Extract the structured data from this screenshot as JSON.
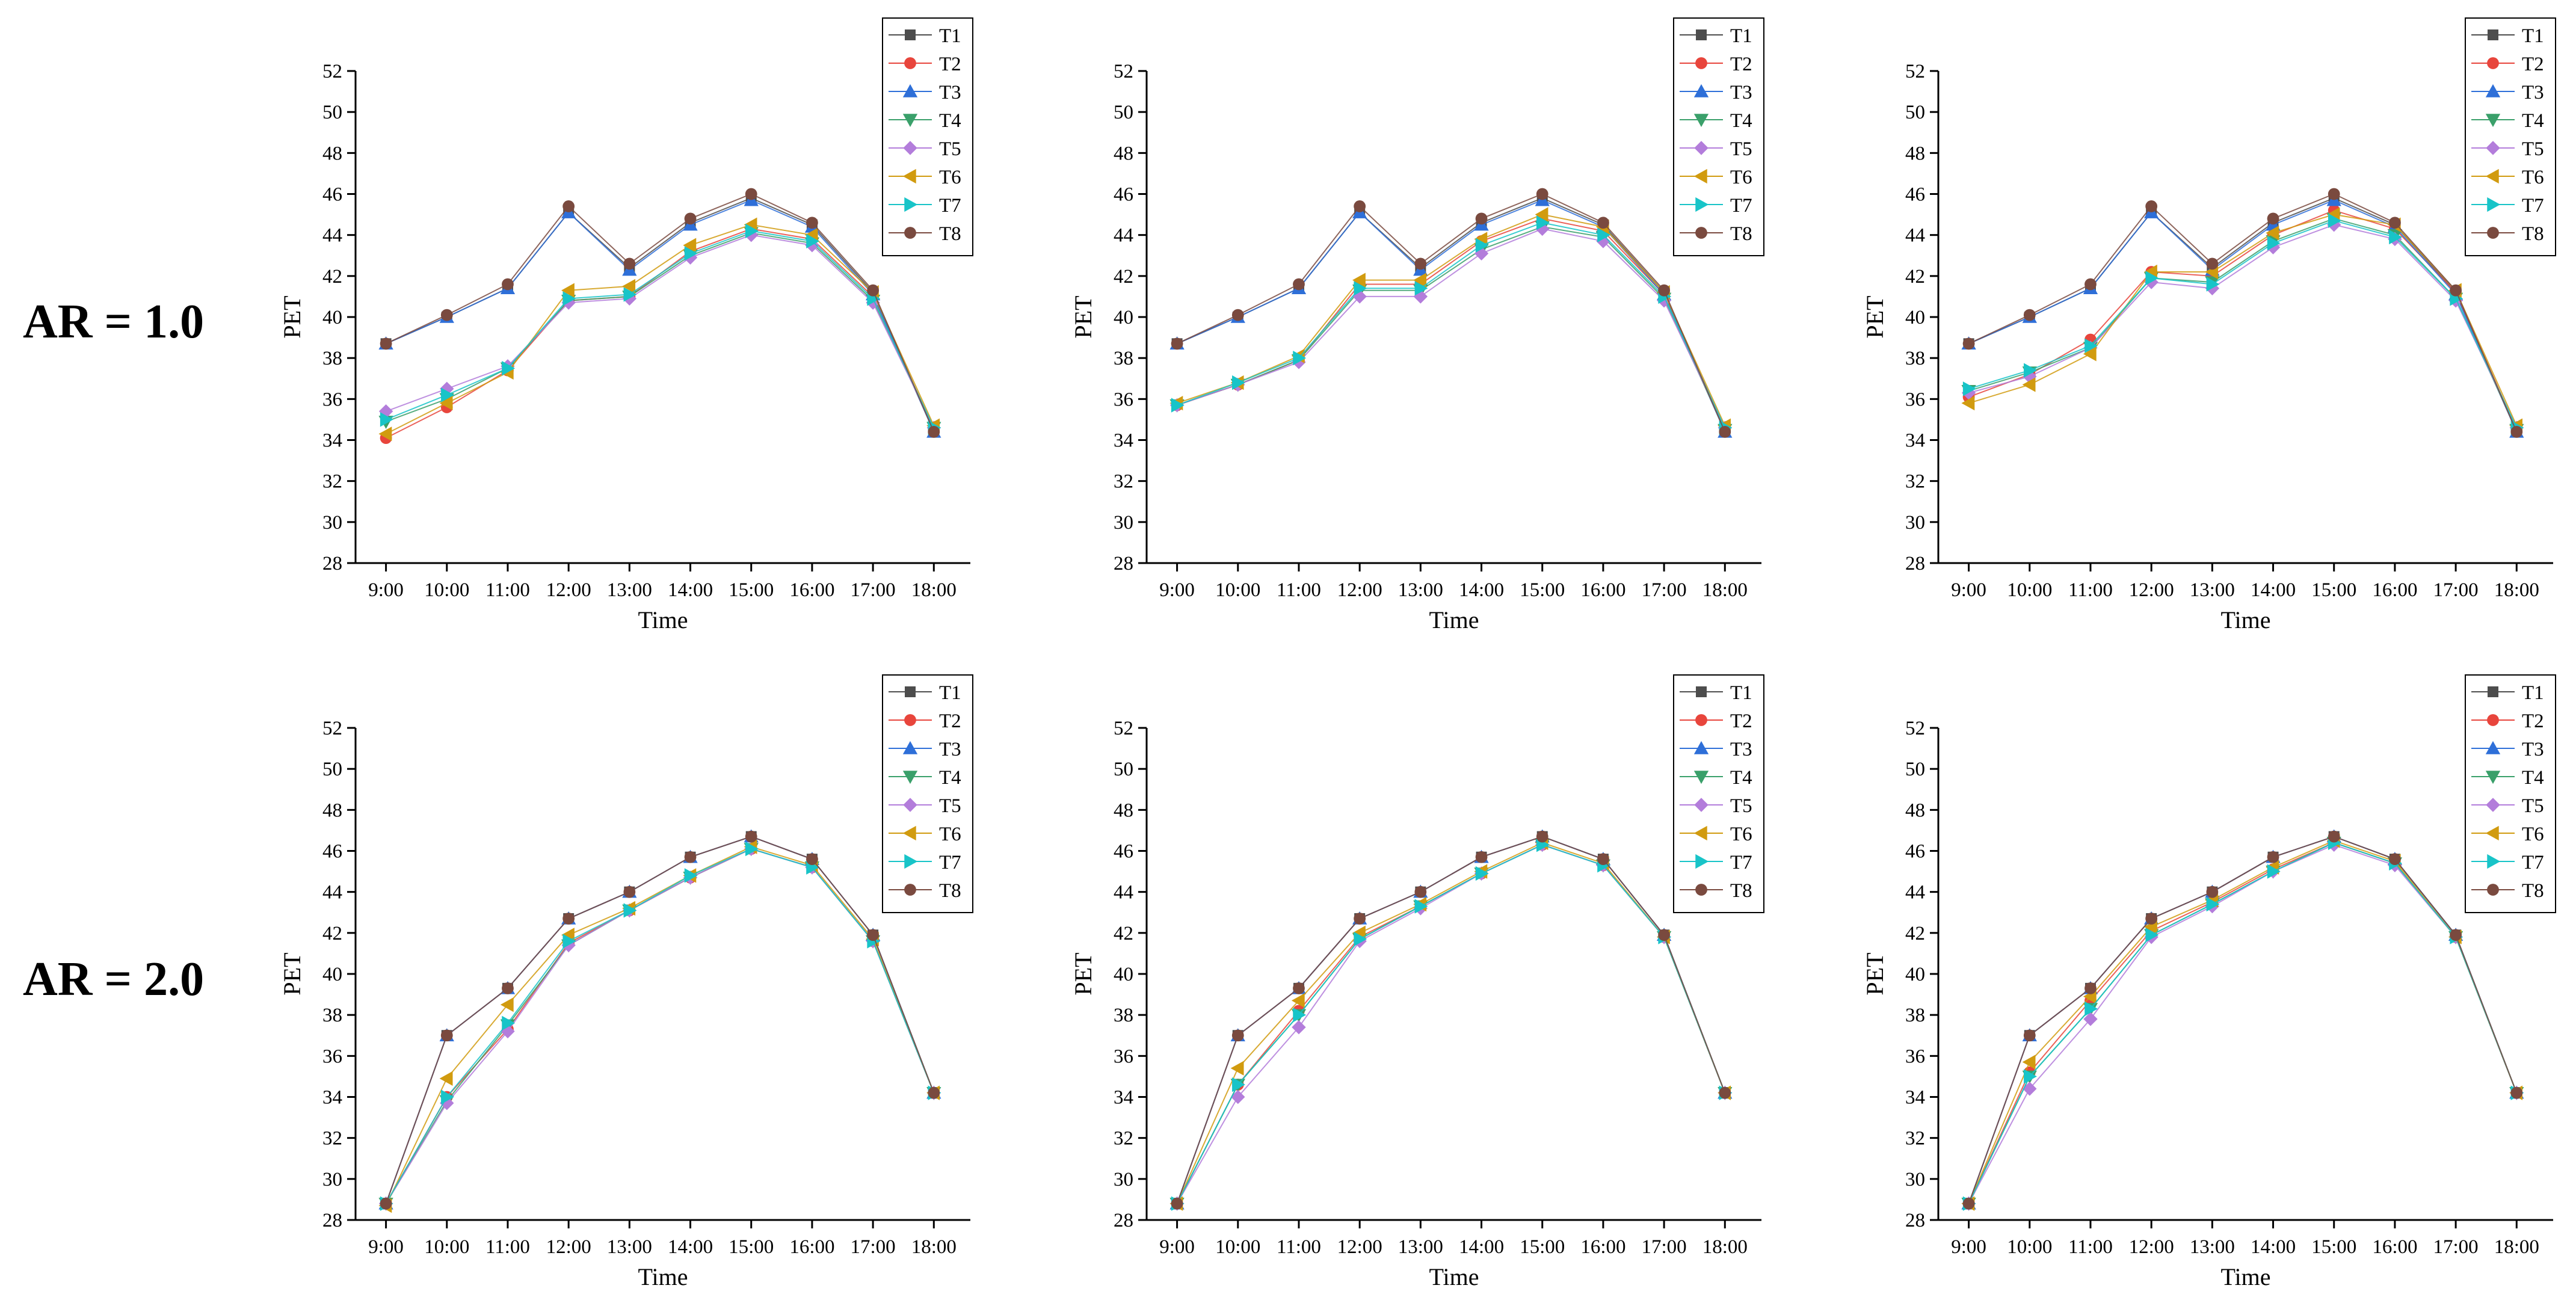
{
  "row_labels": [
    "AR = 1.0",
    "AR = 2.0"
  ],
  "series_names": [
    "T1",
    "T2",
    "T3",
    "T4",
    "T5",
    "T6",
    "T7",
    "T8"
  ],
  "series_colors": [
    "#4d4d4d",
    "#e8453c",
    "#2e6fd8",
    "#3aa06a",
    "#b37ddb",
    "#d19b0f",
    "#18c4c8",
    "#7a4a3f"
  ],
  "series_markers": [
    "square",
    "circle",
    "triangle-up",
    "triangle-down",
    "diamond",
    "triangle-left",
    "triangle-right",
    "circle"
  ],
  "chart_data": [
    {
      "type": "line",
      "title": "",
      "xlabel": "Time",
      "ylabel": "PET",
      "ylim": [
        28,
        52
      ],
      "yticks": [
        28,
        30,
        32,
        34,
        36,
        38,
        40,
        42,
        44,
        46,
        48,
        50,
        52
      ],
      "categories": [
        "9:00",
        "10:00",
        "11:00",
        "12:00",
        "13:00",
        "14:00",
        "15:00",
        "16:00",
        "17:00",
        "18:00"
      ],
      "legend_position": "top-right",
      "series": [
        {
          "name": "T1",
          "values": [
            38.7,
            40.0,
            41.4,
            45.1,
            42.4,
            44.6,
            45.8,
            44.5,
            41.2,
            34.4
          ]
        },
        {
          "name": "T2",
          "values": [
            34.1,
            35.6,
            37.4,
            40.8,
            41.0,
            43.2,
            44.3,
            43.8,
            41.0,
            34.5
          ]
        },
        {
          "name": "T3",
          "values": [
            38.7,
            40.0,
            41.4,
            45.1,
            42.3,
            44.5,
            45.7,
            44.4,
            41.1,
            34.4
          ]
        },
        {
          "name": "T4",
          "values": [
            34.9,
            36.0,
            37.5,
            40.8,
            41.0,
            43.0,
            44.1,
            43.6,
            40.8,
            34.6
          ]
        },
        {
          "name": "T5",
          "values": [
            35.4,
            36.5,
            37.6,
            40.7,
            40.9,
            42.9,
            44.0,
            43.5,
            40.7,
            34.6
          ]
        },
        {
          "name": "T6",
          "values": [
            34.3,
            35.8,
            37.3,
            41.3,
            41.5,
            43.5,
            44.5,
            44.0,
            41.2,
            34.7
          ]
        },
        {
          "name": "T7",
          "values": [
            35.0,
            36.2,
            37.5,
            40.9,
            41.1,
            43.1,
            44.2,
            43.7,
            40.9,
            34.6
          ]
        },
        {
          "name": "T8",
          "values": [
            38.7,
            40.1,
            41.6,
            45.4,
            42.6,
            44.8,
            46.0,
            44.6,
            41.3,
            34.4
          ]
        }
      ]
    },
    {
      "type": "line",
      "title": "",
      "xlabel": "Time",
      "ylabel": "PET",
      "ylim": [
        28,
        52
      ],
      "yticks": [
        28,
        30,
        32,
        34,
        36,
        38,
        40,
        42,
        44,
        46,
        48,
        50,
        52
      ],
      "categories": [
        "9:00",
        "10:00",
        "11:00",
        "12:00",
        "13:00",
        "14:00",
        "15:00",
        "16:00",
        "17:00",
        "18:00"
      ],
      "legend_position": "top-right",
      "series": [
        {
          "name": "T1",
          "values": [
            38.7,
            40.0,
            41.4,
            45.1,
            42.4,
            44.6,
            45.8,
            44.5,
            41.2,
            34.4
          ]
        },
        {
          "name": "T2",
          "values": [
            35.7,
            36.7,
            37.9,
            41.6,
            41.6,
            43.7,
            44.8,
            44.2,
            41.1,
            34.5
          ]
        },
        {
          "name": "T3",
          "values": [
            38.7,
            40.0,
            41.4,
            45.1,
            42.3,
            44.5,
            45.7,
            44.4,
            41.1,
            34.4
          ]
        },
        {
          "name": "T4",
          "values": [
            35.7,
            36.7,
            37.9,
            41.3,
            41.3,
            43.3,
            44.4,
            43.9,
            40.9,
            34.5
          ]
        },
        {
          "name": "T5",
          "values": [
            35.7,
            36.7,
            37.8,
            41.0,
            41.0,
            43.1,
            44.3,
            43.7,
            40.8,
            34.6
          ]
        },
        {
          "name": "T6",
          "values": [
            35.8,
            36.8,
            38.1,
            41.8,
            41.8,
            43.8,
            45.0,
            44.4,
            41.2,
            34.7
          ]
        },
        {
          "name": "T7",
          "values": [
            35.7,
            36.8,
            38.0,
            41.4,
            41.4,
            43.5,
            44.6,
            44.0,
            41.0,
            34.6
          ]
        },
        {
          "name": "T8",
          "values": [
            38.7,
            40.1,
            41.6,
            45.4,
            42.6,
            44.8,
            46.0,
            44.6,
            41.3,
            34.4
          ]
        }
      ]
    },
    {
      "type": "line",
      "title": "",
      "xlabel": "Time",
      "ylabel": "PET",
      "ylim": [
        28,
        52
      ],
      "yticks": [
        28,
        30,
        32,
        34,
        36,
        38,
        40,
        42,
        44,
        46,
        48,
        50,
        52
      ],
      "categories": [
        "9:00",
        "10:00",
        "11:00",
        "12:00",
        "13:00",
        "14:00",
        "15:00",
        "16:00",
        "17:00",
        "18:00"
      ],
      "legend_position": "top-right",
      "series": [
        {
          "name": "T1",
          "values": [
            38.7,
            40.0,
            41.4,
            45.1,
            42.4,
            44.6,
            45.8,
            44.5,
            41.2,
            34.4
          ]
        },
        {
          "name": "T2",
          "values": [
            36.1,
            37.2,
            38.9,
            42.2,
            42.0,
            44.0,
            45.2,
            44.3,
            41.2,
            34.5
          ]
        },
        {
          "name": "T3",
          "values": [
            38.7,
            40.0,
            41.4,
            45.1,
            42.3,
            44.5,
            45.7,
            44.4,
            41.1,
            34.4
          ]
        },
        {
          "name": "T4",
          "values": [
            36.4,
            37.3,
            38.5,
            41.9,
            41.7,
            43.7,
            44.8,
            44.0,
            40.9,
            34.5
          ]
        },
        {
          "name": "T5",
          "values": [
            36.3,
            37.1,
            38.5,
            41.7,
            41.4,
            43.4,
            44.5,
            43.8,
            40.8,
            34.6
          ]
        },
        {
          "name": "T6",
          "values": [
            35.8,
            36.7,
            38.2,
            42.2,
            42.2,
            44.1,
            45.0,
            44.5,
            41.3,
            34.7
          ]
        },
        {
          "name": "T7",
          "values": [
            36.5,
            37.4,
            38.6,
            41.9,
            41.6,
            43.6,
            44.7,
            43.9,
            40.9,
            34.6
          ]
        },
        {
          "name": "T8",
          "values": [
            38.7,
            40.1,
            41.6,
            45.4,
            42.6,
            44.8,
            46.0,
            44.6,
            41.3,
            34.4
          ]
        }
      ]
    },
    {
      "type": "line",
      "title": "",
      "xlabel": "Time",
      "ylabel": "PET",
      "ylim": [
        28,
        52
      ],
      "yticks": [
        28,
        30,
        32,
        34,
        36,
        38,
        40,
        42,
        44,
        46,
        48,
        50,
        52
      ],
      "categories": [
        "9:00",
        "10:00",
        "11:00",
        "12:00",
        "13:00",
        "14:00",
        "15:00",
        "16:00",
        "17:00",
        "18:00"
      ],
      "legend_position": "top-right",
      "series": [
        {
          "name": "T1",
          "values": [
            28.8,
            37.0,
            39.3,
            42.7,
            44.0,
            45.7,
            46.7,
            45.6,
            41.9,
            34.2
          ]
        },
        {
          "name": "T2",
          "values": [
            28.8,
            34.0,
            37.3,
            41.5,
            43.1,
            44.7,
            46.1,
            45.2,
            41.6,
            34.2
          ]
        },
        {
          "name": "T3",
          "values": [
            28.8,
            37.0,
            39.3,
            42.7,
            44.0,
            45.7,
            46.7,
            45.6,
            41.9,
            34.2
          ]
        },
        {
          "name": "T4",
          "values": [
            28.8,
            33.8,
            37.5,
            41.4,
            43.1,
            44.7,
            46.1,
            45.2,
            41.6,
            34.2
          ]
        },
        {
          "name": "T5",
          "values": [
            28.8,
            33.7,
            37.2,
            41.4,
            43.1,
            44.7,
            46.1,
            45.2,
            41.6,
            34.2
          ]
        },
        {
          "name": "T6",
          "values": [
            28.7,
            34.9,
            38.5,
            41.9,
            43.2,
            44.8,
            46.2,
            45.3,
            41.7,
            34.2
          ]
        },
        {
          "name": "T7",
          "values": [
            28.8,
            34.0,
            37.6,
            41.6,
            43.1,
            44.8,
            46.1,
            45.2,
            41.6,
            34.2
          ]
        },
        {
          "name": "T8",
          "values": [
            28.8,
            37.0,
            39.3,
            42.7,
            44.0,
            45.7,
            46.7,
            45.6,
            41.9,
            34.2
          ]
        }
      ]
    },
    {
      "type": "line",
      "title": "",
      "xlabel": "Time",
      "ylabel": "PET",
      "ylim": [
        28,
        52
      ],
      "yticks": [
        28,
        30,
        32,
        34,
        36,
        38,
        40,
        42,
        44,
        46,
        48,
        50,
        52
      ],
      "categories": [
        "9:00",
        "10:00",
        "11:00",
        "12:00",
        "13:00",
        "14:00",
        "15:00",
        "16:00",
        "17:00",
        "18:00"
      ],
      "legend_position": "top-right",
      "series": [
        {
          "name": "T1",
          "values": [
            28.8,
            37.0,
            39.3,
            42.7,
            44.0,
            45.7,
            46.7,
            45.6,
            41.9,
            34.2
          ]
        },
        {
          "name": "T2",
          "values": [
            28.8,
            34.6,
            38.2,
            41.8,
            43.3,
            44.9,
            46.3,
            45.3,
            41.8,
            34.2
          ]
        },
        {
          "name": "T3",
          "values": [
            28.8,
            37.0,
            39.3,
            42.7,
            44.0,
            45.7,
            46.7,
            45.6,
            41.9,
            34.2
          ]
        },
        {
          "name": "T4",
          "values": [
            28.8,
            34.6,
            38.0,
            41.7,
            43.3,
            44.9,
            46.3,
            45.3,
            41.8,
            34.2
          ]
        },
        {
          "name": "T5",
          "values": [
            28.8,
            34.0,
            37.4,
            41.6,
            43.2,
            44.9,
            46.3,
            45.3,
            41.8,
            34.2
          ]
        },
        {
          "name": "T6",
          "values": [
            28.8,
            35.4,
            38.7,
            42.0,
            43.4,
            45.0,
            46.4,
            45.4,
            41.8,
            34.2
          ]
        },
        {
          "name": "T7",
          "values": [
            28.8,
            34.6,
            38.0,
            41.7,
            43.3,
            44.9,
            46.3,
            45.3,
            41.8,
            34.2
          ]
        },
        {
          "name": "T8",
          "values": [
            28.8,
            37.0,
            39.3,
            42.7,
            44.0,
            45.7,
            46.7,
            45.6,
            41.9,
            34.2
          ]
        }
      ]
    },
    {
      "type": "line",
      "title": "",
      "xlabel": "Time",
      "ylabel": "PET",
      "ylim": [
        28,
        52
      ],
      "yticks": [
        28,
        30,
        32,
        34,
        36,
        38,
        40,
        42,
        44,
        46,
        48,
        50,
        52
      ],
      "categories": [
        "9:00",
        "10:00",
        "11:00",
        "12:00",
        "13:00",
        "14:00",
        "15:00",
        "16:00",
        "17:00",
        "18:00"
      ],
      "legend_position": "top-right",
      "series": [
        {
          "name": "T1",
          "values": [
            28.8,
            37.0,
            39.3,
            42.7,
            44.0,
            45.7,
            46.7,
            45.6,
            41.9,
            34.2
          ]
        },
        {
          "name": "T2",
          "values": [
            28.8,
            35.2,
            38.7,
            42.1,
            43.5,
            45.1,
            46.4,
            45.4,
            41.8,
            34.2
          ]
        },
        {
          "name": "T3",
          "values": [
            28.8,
            37.0,
            39.3,
            42.7,
            44.0,
            45.7,
            46.7,
            45.6,
            41.9,
            34.2
          ]
        },
        {
          "name": "T4",
          "values": [
            28.8,
            35.0,
            38.3,
            41.9,
            43.4,
            45.0,
            46.4,
            45.4,
            41.8,
            34.2
          ]
        },
        {
          "name": "T5",
          "values": [
            28.8,
            34.4,
            37.8,
            41.8,
            43.3,
            45.0,
            46.3,
            45.3,
            41.8,
            34.2
          ]
        },
        {
          "name": "T6",
          "values": [
            28.8,
            35.7,
            38.9,
            42.3,
            43.6,
            45.2,
            46.5,
            45.5,
            41.8,
            34.2
          ]
        },
        {
          "name": "T7",
          "values": [
            28.8,
            35.0,
            38.3,
            41.9,
            43.4,
            45.0,
            46.4,
            45.4,
            41.8,
            34.2
          ]
        },
        {
          "name": "T8",
          "values": [
            28.8,
            37.0,
            39.3,
            42.7,
            44.0,
            45.7,
            46.7,
            45.6,
            41.9,
            34.2
          ]
        }
      ]
    }
  ]
}
